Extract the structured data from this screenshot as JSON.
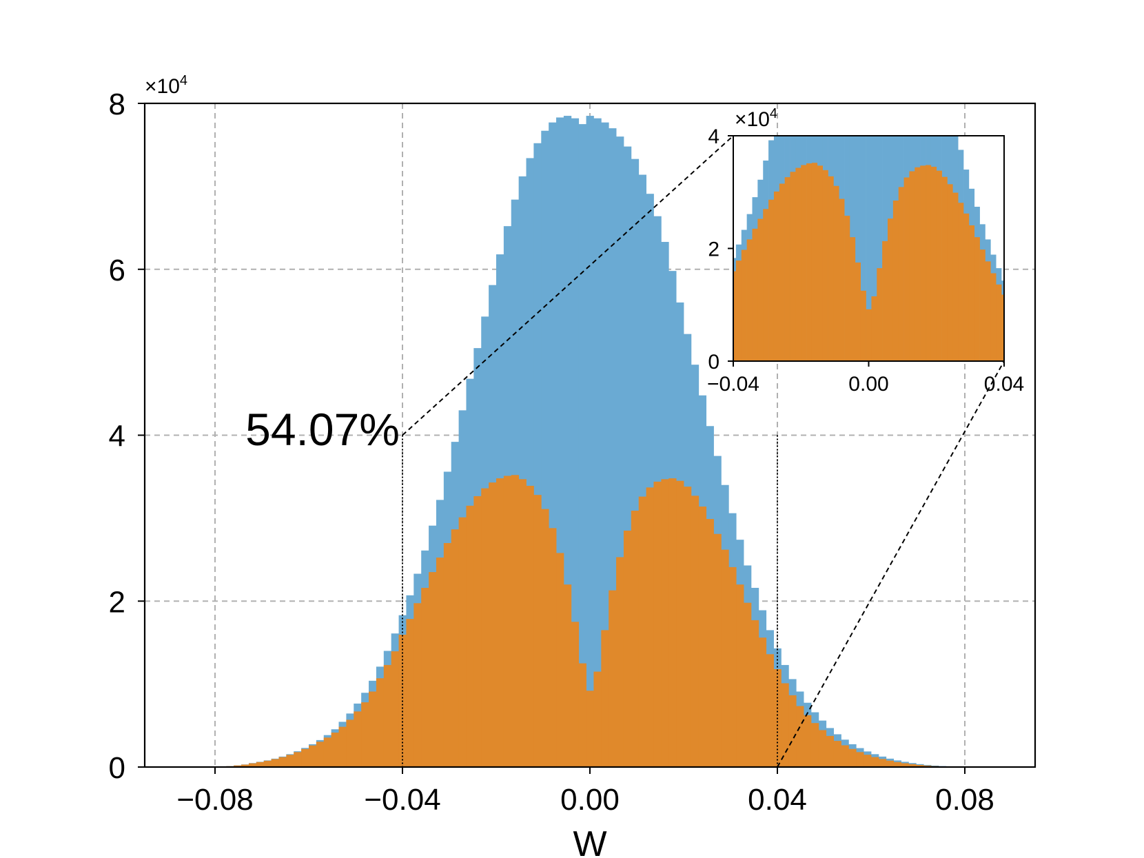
{
  "chart_data": [
    {
      "type": "bar",
      "panel": "main",
      "xlabel": "W",
      "ylabel": "",
      "xlim": [
        -0.095,
        0.095
      ],
      "ylim": [
        0,
        80000
      ],
      "y_multiplier_label": {
        "base": "×10",
        "exp": "4"
      },
      "xticks": [
        -0.08,
        -0.04,
        0.0,
        0.04,
        0.08
      ],
      "xtick_labels": [
        "−0.08",
        "−0.04",
        "0.00",
        "0.04",
        "0.08"
      ],
      "yticks": [
        0,
        20000,
        40000,
        60000,
        80000
      ],
      "ytick_labels": [
        "0",
        "2",
        "4",
        "6",
        "8"
      ],
      "grid": true,
      "bin_width": 0.0016,
      "series": [
        {
          "color": "#6aaad3",
          "x": [
            -0.0784,
            -0.0768,
            -0.0752,
            -0.0736,
            -0.072,
            -0.0704,
            -0.0688,
            -0.0672,
            -0.0656,
            -0.064,
            -0.0624,
            -0.0608,
            -0.0592,
            -0.0576,
            -0.056,
            -0.0544,
            -0.0528,
            -0.0512,
            -0.0496,
            -0.048,
            -0.0464,
            -0.0448,
            -0.0432,
            -0.0416,
            -0.04,
            -0.0384,
            -0.0368,
            -0.0352,
            -0.0336,
            -0.032,
            -0.0304,
            -0.0288,
            -0.0272,
            -0.0256,
            -0.024,
            -0.0224,
            -0.0208,
            -0.0192,
            -0.0176,
            -0.016,
            -0.0144,
            -0.0128,
            -0.0112,
            -0.0096,
            -0.008,
            -0.0064,
            -0.0048,
            -0.0032,
            -0.0016,
            0.0,
            0.0016,
            0.0032,
            0.0048,
            0.0064,
            0.008,
            0.0096,
            0.0112,
            0.0128,
            0.0144,
            0.016,
            0.0176,
            0.0192,
            0.0208,
            0.0224,
            0.024,
            0.0256,
            0.0272,
            0.0288,
            0.0304,
            0.032,
            0.0336,
            0.0352,
            0.0368,
            0.0384,
            0.04,
            0.0416,
            0.0432,
            0.0448,
            0.0464,
            0.048,
            0.0496,
            0.0512,
            0.0528,
            0.0544,
            0.056,
            0.0576,
            0.0592,
            0.0608,
            0.0624,
            0.064,
            0.0656,
            0.0672,
            0.0688,
            0.0704,
            0.072,
            0.0736,
            0.0752,
            0.0768,
            0.0784
          ],
          "values": [
            50,
            100,
            200,
            310,
            480,
            630,
            800,
            1010,
            1260,
            1550,
            1900,
            2300,
            2750,
            3250,
            3850,
            4550,
            5450,
            6450,
            7650,
            8950,
            10400,
            12100,
            14000,
            16100,
            18300,
            20700,
            23300,
            26100,
            29100,
            32200,
            35600,
            39200,
            43000,
            46800,
            50500,
            54300,
            58100,
            61800,
            65200,
            68400,
            71200,
            73400,
            75200,
            76700,
            77700,
            78300,
            78500,
            78200,
            77500,
            78500,
            78200,
            77700,
            77000,
            76000,
            74800,
            73300,
            71400,
            69100,
            66400,
            63300,
            59800,
            56000,
            52200,
            48500,
            44800,
            41100,
            37500,
            34000,
            30600,
            27400,
            24300,
            21600,
            18900,
            16500,
            14300,
            12300,
            10600,
            9100,
            7750,
            6600,
            5600,
            4700,
            3950,
            3300,
            2750,
            2280,
            1880,
            1550,
            1260,
            1010,
            800,
            630,
            480,
            350,
            250,
            170,
            110,
            60,
            30
          ]
        },
        {
          "color": "#e0892b",
          "x": [
            -0.0784,
            -0.0768,
            -0.0752,
            -0.0736,
            -0.072,
            -0.0704,
            -0.0688,
            -0.0672,
            -0.0656,
            -0.064,
            -0.0624,
            -0.0608,
            -0.0592,
            -0.0576,
            -0.056,
            -0.0544,
            -0.0528,
            -0.0512,
            -0.0496,
            -0.048,
            -0.0464,
            -0.0448,
            -0.0432,
            -0.0416,
            -0.04,
            -0.0384,
            -0.0368,
            -0.0352,
            -0.0336,
            -0.032,
            -0.0304,
            -0.0288,
            -0.0272,
            -0.0256,
            -0.024,
            -0.0224,
            -0.0208,
            -0.0192,
            -0.0176,
            -0.016,
            -0.0144,
            -0.0128,
            -0.0112,
            -0.0096,
            -0.008,
            -0.0064,
            -0.0048,
            -0.0032,
            -0.0016,
            0.0,
            0.0016,
            0.0032,
            0.0048,
            0.0064,
            0.008,
            0.0096,
            0.0112,
            0.0128,
            0.0144,
            0.016,
            0.0176,
            0.0192,
            0.0208,
            0.0224,
            0.024,
            0.0256,
            0.0272,
            0.0288,
            0.0304,
            0.032,
            0.0336,
            0.0352,
            0.0368,
            0.0384,
            0.04,
            0.0416,
            0.0432,
            0.0448,
            0.0464,
            0.048,
            0.0496,
            0.0512,
            0.0528,
            0.0544,
            0.056,
            0.0576,
            0.0592,
            0.0608,
            0.0624,
            0.064,
            0.0656,
            0.0672,
            0.0688,
            0.0704,
            0.072,
            0.0736,
            0.0752,
            0.0768,
            0.0784
          ],
          "values": [
            50,
            100,
            190,
            290,
            450,
            600,
            760,
            960,
            1200,
            1470,
            1800,
            2180,
            2600,
            3050,
            3550,
            4150,
            4850,
            5700,
            6700,
            7800,
            9100,
            10700,
            12300,
            13950,
            15950,
            17850,
            19750,
            21600,
            23500,
            25250,
            27000,
            28650,
            30100,
            31500,
            32650,
            33600,
            34300,
            34800,
            35100,
            35200,
            34700,
            33900,
            32800,
            31100,
            28800,
            25800,
            22000,
            17500,
            12500,
            9200,
            11500,
            16500,
            21300,
            25300,
            28500,
            30900,
            32600,
            33700,
            34400,
            34700,
            34800,
            34500,
            33800,
            32700,
            31400,
            29900,
            28100,
            26200,
            24100,
            22000,
            19800,
            17700,
            15600,
            13600,
            11800,
            10100,
            8650,
            7350,
            6250,
            5300,
            4450,
            3750,
            3150,
            2620,
            2180,
            1800,
            1480,
            1200,
            970,
            770,
            600,
            460,
            350,
            250,
            170,
            110,
            70,
            40,
            20
          ]
        }
      ],
      "annotation": "54.07%"
    },
    {
      "type": "bar",
      "panel": "inset",
      "xlim": [
        -0.04,
        0.04
      ],
      "ylim": [
        0,
        40000
      ],
      "y_multiplier_label": {
        "base": "×10",
        "exp": "4"
      },
      "xticks": [
        -0.04,
        0.0,
        0.04
      ],
      "xtick_labels": [
        "−0.04",
        "0.00",
        "0.04"
      ],
      "yticks": [
        0,
        20000,
        40000
      ],
      "ytick_labels": [
        "0",
        "2",
        "4"
      ],
      "grid": false
    }
  ]
}
